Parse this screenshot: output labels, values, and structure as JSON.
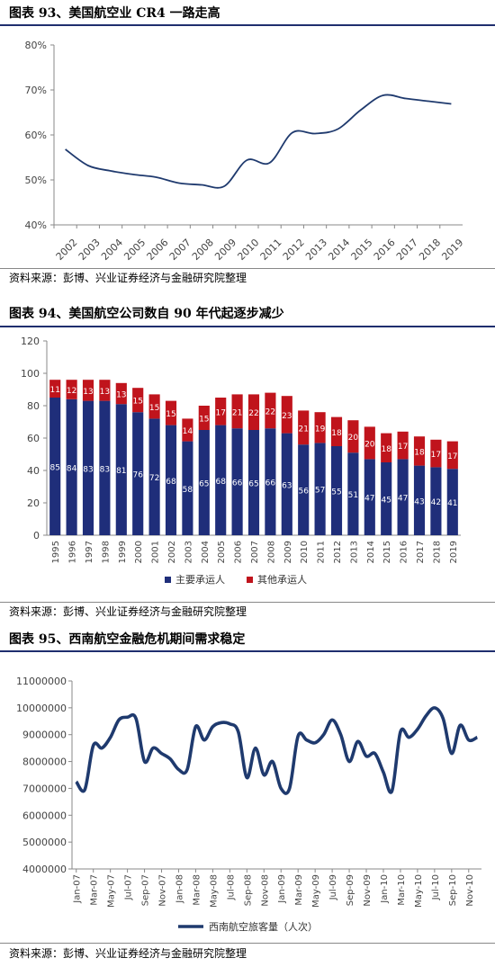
{
  "figures": [
    {
      "title": "图表 93、美国航空业 CR4 一路走高",
      "source": "资料来源：彭博、兴业证券经济与金融研究院整理"
    },
    {
      "title": "图表 94、美国航空公司数自 90 年代起逐步减少",
      "source": "资料来源：彭博、兴业证券经济与金融研究院整理"
    },
    {
      "title": "图表 95、西南航空金融危机期间需求稳定",
      "source": "资料来源：彭博、兴业证券经济与金融研究院整理"
    }
  ],
  "colors": {
    "line": "#1f3a6e",
    "major": "#1f2e7a",
    "other": "#c0141c",
    "rule": "#1f2e6e"
  },
  "chart_data": [
    {
      "type": "line",
      "x": [
        "2002",
        "2003",
        "2004",
        "2005",
        "2006",
        "2007",
        "2008",
        "2009",
        "2010",
        "2011",
        "2012",
        "2013",
        "2014",
        "2015",
        "2016",
        "2017",
        "2018",
        "2019"
      ],
      "series": [
        {
          "values": [
            56.8,
            53.2,
            52.0,
            51.2,
            50.6,
            49.3,
            48.9,
            48.6,
            54.4,
            53.8,
            60.5,
            60.3,
            61.3,
            65.5,
            68.8,
            68.1,
            67.5,
            66.9
          ]
        }
      ],
      "ylim": [
        40,
        80
      ],
      "yticks": [
        "40%",
        "50%",
        "60%",
        "70%",
        "80%"
      ],
      "ytick_values": [
        40,
        50,
        60,
        70,
        80
      ],
      "grid": false
    },
    {
      "type": "bar",
      "stacked": true,
      "categories": [
        "1995",
        "1996",
        "1997",
        "1998",
        "1999",
        "2000",
        "2001",
        "2002",
        "2003",
        "2004",
        "2005",
        "2006",
        "2007",
        "2008",
        "2009",
        "2010",
        "2011",
        "2012",
        "2013",
        "2014",
        "2015",
        "2016",
        "2017",
        "2018",
        "2019"
      ],
      "series": [
        {
          "name": "主要承运人",
          "values": [
            85,
            84,
            83,
            83,
            81,
            76,
            72,
            68,
            58,
            65,
            68,
            66,
            65,
            66,
            63,
            56,
            57,
            55,
            51,
            47,
            45,
            47,
            43,
            42,
            41
          ]
        },
        {
          "name": "其他承运人",
          "values": [
            11,
            12,
            13,
            13,
            13,
            15,
            15,
            15,
            14,
            15,
            17,
            21,
            22,
            22,
            23,
            21,
            19,
            18,
            20,
            20,
            18,
            17,
            18,
            17,
            17
          ]
        }
      ],
      "ylim": [
        0,
        120
      ],
      "yticks": [
        "0",
        "20",
        "40",
        "60",
        "80",
        "100",
        "120"
      ],
      "ytick_values": [
        0,
        20,
        40,
        60,
        80,
        100,
        120
      ],
      "legend": "bottom"
    },
    {
      "type": "line",
      "x": [
        "Jan-07",
        "Feb-07",
        "Mar-07",
        "Apr-07",
        "May-07",
        "Jun-07",
        "Jul-07",
        "Aug-07",
        "Sep-07",
        "Oct-07",
        "Nov-07",
        "Dec-07",
        "Jan-08",
        "Feb-08",
        "Mar-08",
        "Apr-08",
        "May-08",
        "Jun-08",
        "Jul-08",
        "Aug-08",
        "Sep-08",
        "Oct-08",
        "Nov-08",
        "Dec-08",
        "Jan-09",
        "Feb-09",
        "Mar-09",
        "Apr-09",
        "May-09",
        "Jun-09",
        "Jul-09",
        "Aug-09",
        "Sep-09",
        "Oct-09",
        "Nov-09",
        "Dec-09",
        "Jan-10",
        "Feb-10",
        "Mar-10",
        "Apr-10",
        "May-10",
        "Jun-10",
        "Jul-10",
        "Aug-10",
        "Sep-10",
        "Oct-10",
        "Nov-10",
        "Dec-10"
      ],
      "xticks": [
        "Jan-07",
        "Mar-07",
        "May-07",
        "Jul-07",
        "Sep-07",
        "Nov-07",
        "Jan-08",
        "Mar-08",
        "May-08",
        "Jul-08",
        "Sep-08",
        "Nov-08",
        "Jan-09",
        "Mar-09",
        "May-09",
        "Jul-09",
        "Sep-09",
        "Nov-09",
        "Jan-10",
        "Mar-10",
        "May-10",
        "Jul-10",
        "Sep-10",
        "Nov-10"
      ],
      "series": [
        {
          "name": "西南航空旅客量（人次）",
          "values": [
            7250000,
            6950000,
            8600000,
            8500000,
            8900000,
            9550000,
            9650000,
            9600000,
            8000000,
            8500000,
            8300000,
            8100000,
            7700000,
            7700000,
            9300000,
            8800000,
            9300000,
            9450000,
            9400000,
            9100000,
            7400000,
            8500000,
            7500000,
            8000000,
            7000000,
            7000000,
            8950000,
            8800000,
            8700000,
            9000000,
            9550000,
            9000000,
            8000000,
            8750000,
            8200000,
            8300000,
            7600000,
            6900000,
            9100000,
            8900000,
            9200000,
            9700000,
            10000000,
            9600000,
            8300000,
            9350000,
            8800000,
            8900000
          ]
        }
      ],
      "ylim": [
        4000000,
        11000000
      ],
      "yticks": [
        "4000000",
        "5000000",
        "6000000",
        "7000000",
        "8000000",
        "9000000",
        "10000000",
        "11000000"
      ],
      "ytick_values": [
        4000000,
        5000000,
        6000000,
        7000000,
        8000000,
        9000000,
        10000000,
        11000000
      ],
      "legend": "bottom"
    }
  ]
}
